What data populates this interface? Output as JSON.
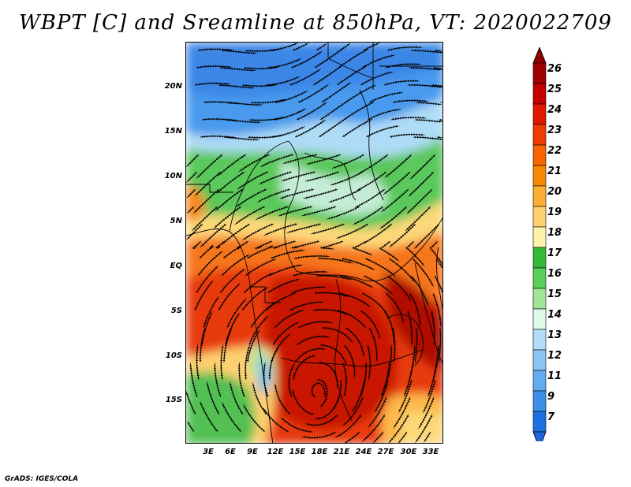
{
  "title": "WBPT [C] and Sreamline at 850hPa, VT: 2020022709",
  "map": {
    "lat_labels": [
      "20N",
      "15N",
      "10N",
      "5N",
      "EQ",
      "5S",
      "10S",
      "15S"
    ],
    "lon_labels": [
      "3E",
      "6E",
      "9E",
      "12E",
      "15E",
      "18E",
      "21E",
      "24E",
      "27E",
      "30E",
      "33E"
    ],
    "lat_values": [
      20,
      15,
      10,
      5,
      0,
      -5,
      -10,
      -15
    ],
    "lon_values": [
      3,
      6,
      9,
      12,
      15,
      18,
      21,
      24,
      27,
      30,
      33
    ],
    "lon_range": [
      0,
      35
    ],
    "lat_range": [
      -20,
      25
    ]
  },
  "colorbar": {
    "labels": [
      "26",
      "25",
      "24",
      "23",
      "22",
      "21",
      "20",
      "19",
      "18",
      "17",
      "16",
      "15",
      "14",
      "13",
      "12",
      "11",
      "9",
      "7"
    ],
    "colors": [
      "#a00000",
      "#c40000",
      "#e01800",
      "#ee3c00",
      "#f86400",
      "#f88800",
      "#fcae34",
      "#fcd070",
      "#fcf2aa",
      "#38b838",
      "#5ad05a",
      "#a0e696",
      "#e0f8e8",
      "#b4dcf8",
      "#8cc4f4",
      "#64acf0",
      "#3c90e8",
      "#1e70e0"
    ],
    "top_arrow_color": "#8c0000",
    "bottom_arrow_color": "#1e64dc"
  },
  "footer": "GrADS: IGES/COLA"
}
